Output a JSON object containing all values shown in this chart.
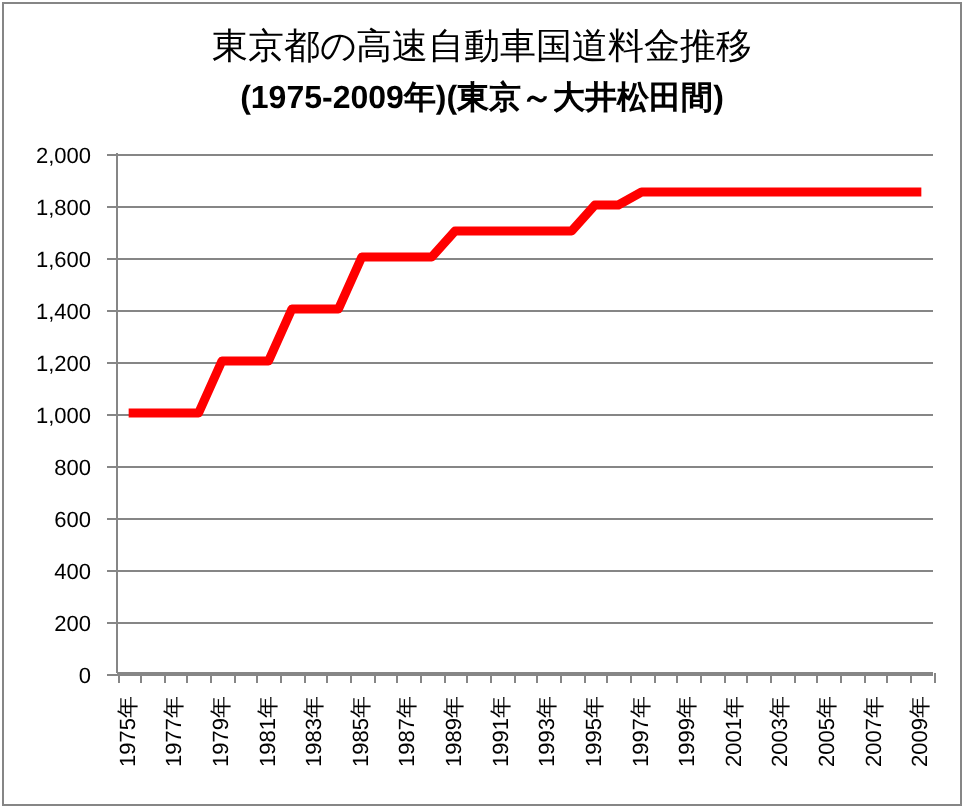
{
  "chart_data": {
    "type": "line",
    "title": "東京都の高速自動車国道料金推移",
    "subtitle": "(1975-2009年)(東京～大井松田間)",
    "categories": [
      "1975年",
      null,
      "1977年",
      null,
      "1979年",
      null,
      "1981年",
      null,
      "1983年",
      null,
      "1985年",
      null,
      "1987年",
      null,
      "1989年",
      null,
      "1991年",
      null,
      "1993年",
      null,
      "1995年",
      null,
      "1997年",
      null,
      "1999年",
      null,
      "2001年",
      null,
      "2003年",
      null,
      "2005年",
      null,
      "2007年",
      null,
      "2009年"
    ],
    "series": [
      {
        "color": "#ff0000",
        "values": [
          1000,
          1000,
          1000,
          1000,
          1200,
          1200,
          1200,
          1400,
          1400,
          1400,
          1600,
          1600,
          1600,
          1600,
          1700,
          1700,
          1700,
          1700,
          1700,
          1700,
          1800,
          1800,
          1850,
          1850,
          1850,
          1850,
          1850,
          1850,
          1850,
          1850,
          1850,
          1850,
          1850,
          1850,
          1850
        ]
      }
    ],
    "ylim": [
      0,
      2000
    ],
    "yticks": [
      0,
      200,
      400,
      600,
      800,
      {
        "value": 1000,
        "label": "1,000"
      },
      {
        "value": 1200,
        "label": "1,200"
      },
      {
        "value": 1400,
        "label": "1,400"
      },
      {
        "value": 1600,
        "label": "1,600"
      },
      {
        "value": 1800,
        "label": "1,800"
      },
      {
        "value": 2000,
        "label": "2,000"
      }
    ],
    "grid": "y",
    "line_style": "solid"
  }
}
